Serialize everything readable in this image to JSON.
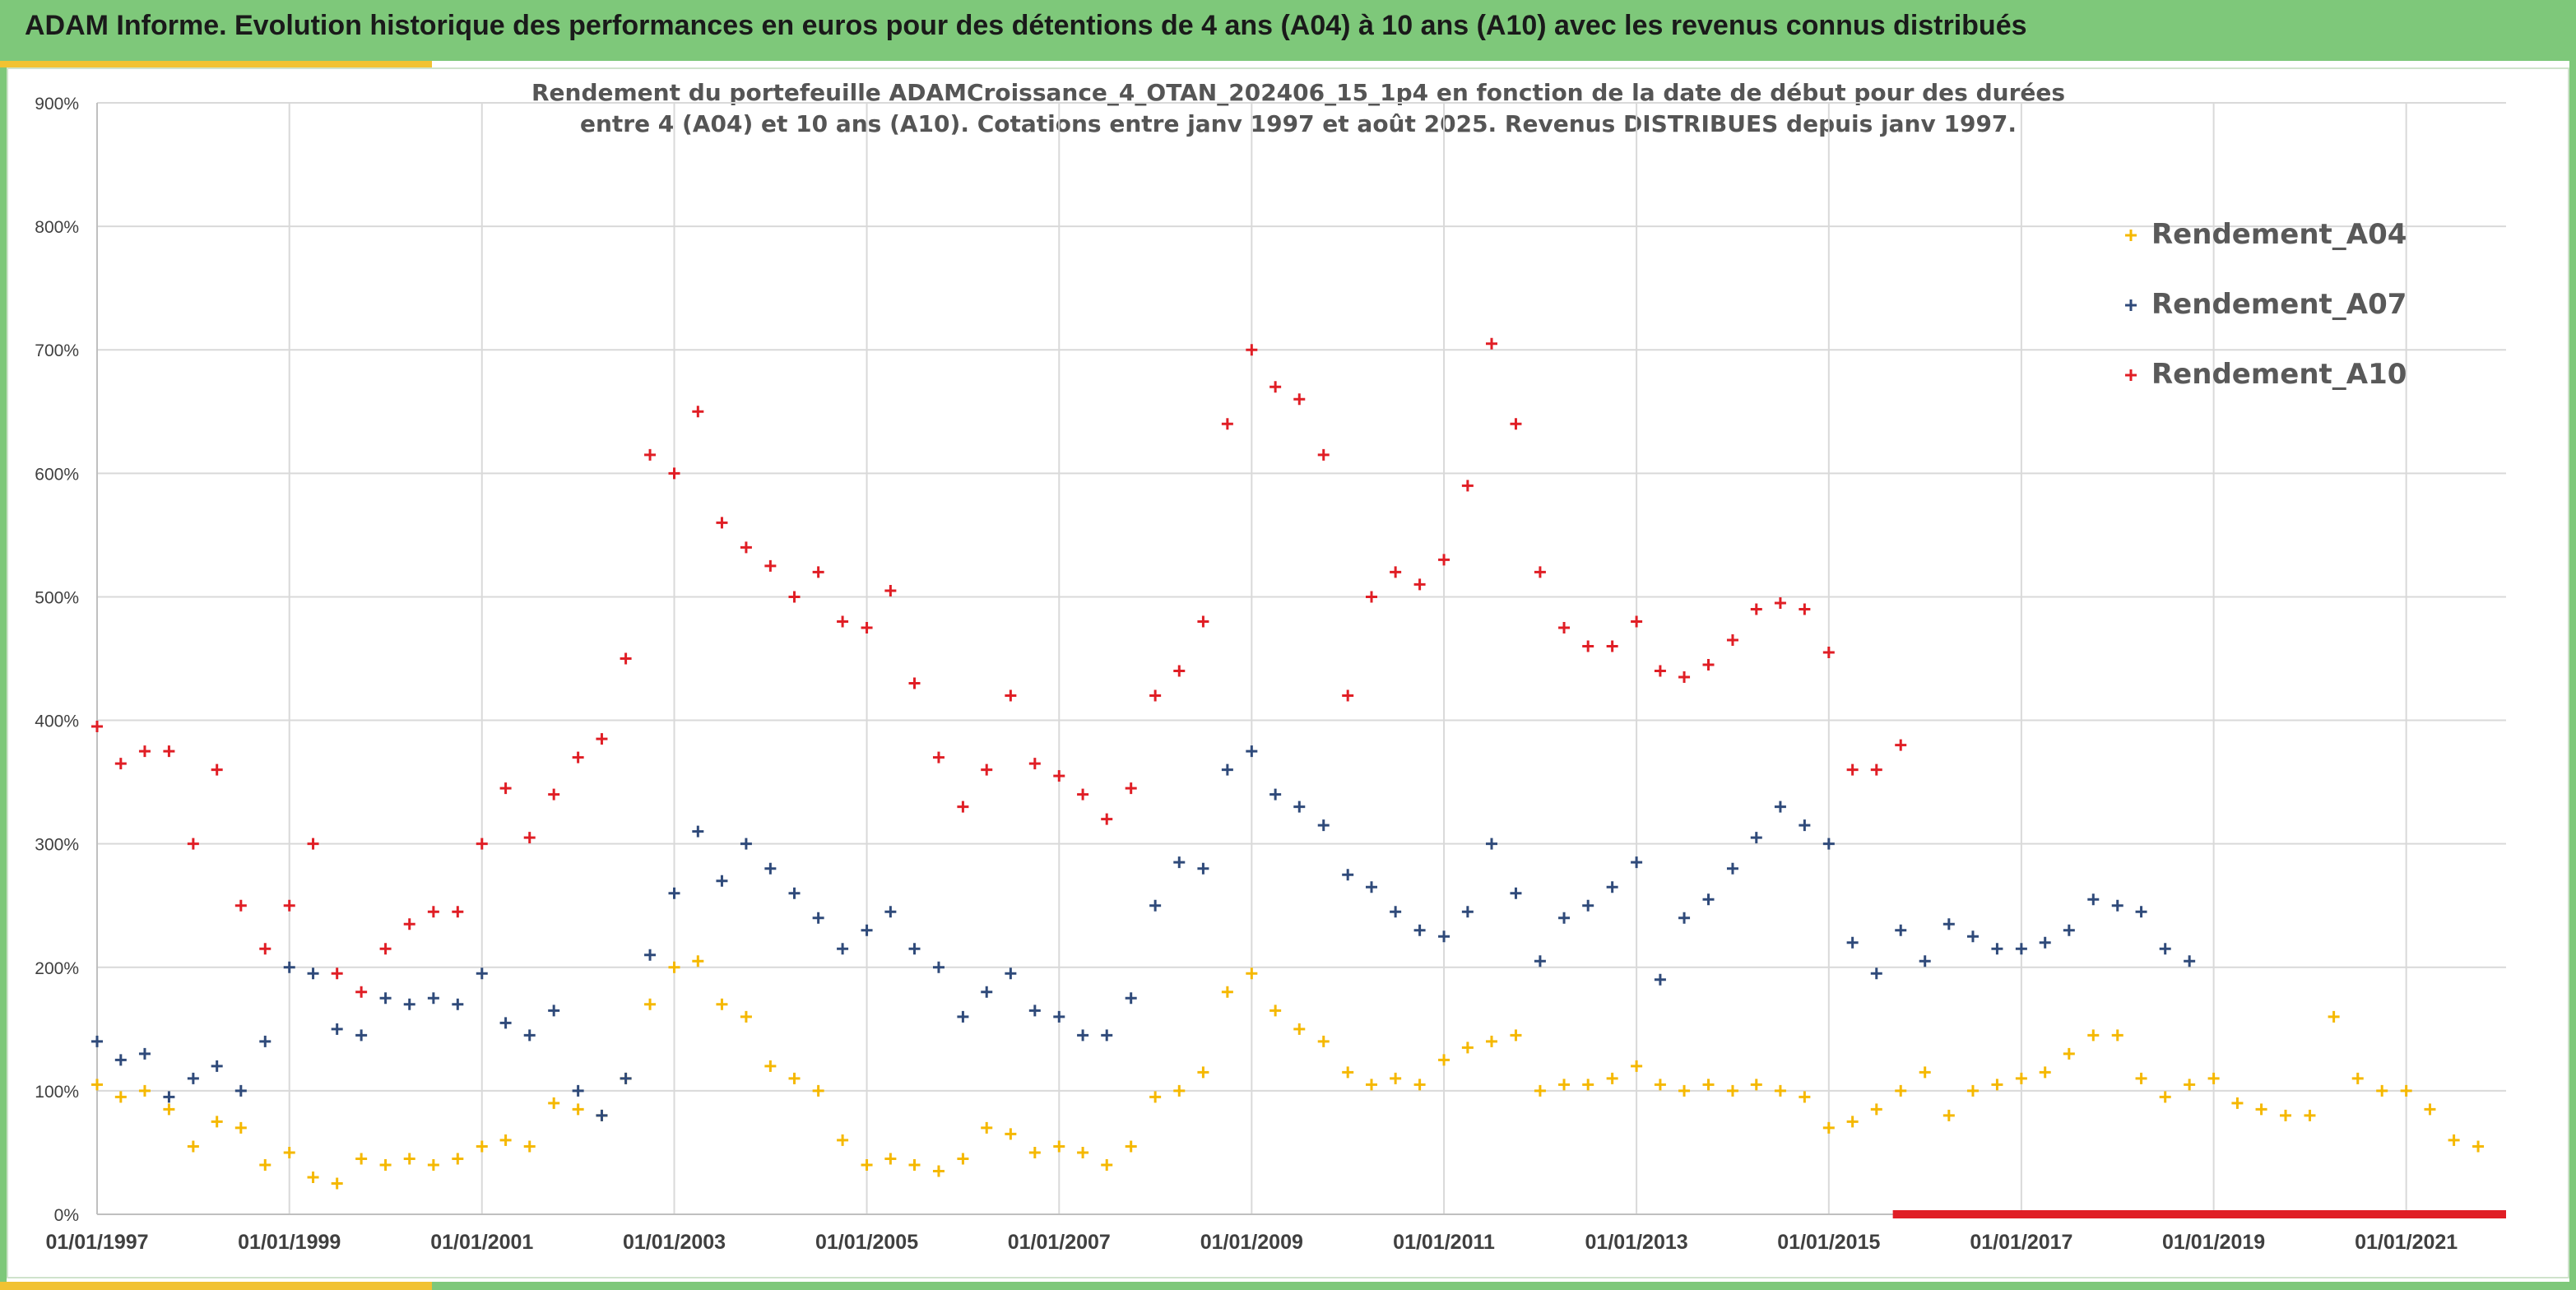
{
  "header": {
    "title": "ADAM Informe. Evolution historique des performances en euros pour des détentions de 4 ans (A04) à 10 ans (A10) avec les revenus connus distribués"
  },
  "colors": {
    "banner": "#7ec87a",
    "accent": "#f1c232",
    "A04": "#f5b800",
    "A07": "#2f4a7a",
    "A10": "#e01e25",
    "grid": "#d9d9d9"
  },
  "chart_data": {
    "type": "scatter",
    "marker": "plus",
    "title_lines": [
      "Rendement du portefeuille ADAMCroissance_4_OTAN_202406_15_1p4  en fonction de la date de début pour des durées",
      "entre 4 (A04) et 10 ans (A10). Cotations entre janv 1997 et août 2025. Revenus DISTRIBUES depuis janv 1997."
    ],
    "xlabel": "",
    "ylabel": "",
    "ylim": [
      0,
      900
    ],
    "xlim": [
      "1997-01-01",
      "2022-01-15"
    ],
    "grid": true,
    "legend_position": "top-right",
    "y_ticks": [
      "0%",
      "100%",
      "200%",
      "300%",
      "400%",
      "500%",
      "600%",
      "700%",
      "800%",
      "900%"
    ],
    "x_ticks": [
      "01/01/1997",
      "01/01/1999",
      "01/01/2001",
      "01/01/2003",
      "01/01/2005",
      "01/01/2007",
      "01/01/2009",
      "01/01/2011",
      "01/01/2013",
      "01/01/2015",
      "01/01/2017",
      "01/01/2019",
      "01/01/2021"
    ],
    "series": [
      {
        "name": "Rendement_A04",
        "color": "#f5b800",
        "points": [
          [
            "1997-01-01",
            105
          ],
          [
            "1997-04-01",
            95
          ],
          [
            "1997-07-01",
            100
          ],
          [
            "1997-10-01",
            85
          ],
          [
            "1998-01-01",
            55
          ],
          [
            "1998-04-01",
            75
          ],
          [
            "1998-07-01",
            70
          ],
          [
            "1998-10-01",
            40
          ],
          [
            "1999-01-01",
            50
          ],
          [
            "1999-04-01",
            30
          ],
          [
            "1999-07-01",
            25
          ],
          [
            "1999-10-01",
            45
          ],
          [
            "2000-01-01",
            40
          ],
          [
            "2000-04-01",
            45
          ],
          [
            "2000-07-01",
            40
          ],
          [
            "2000-10-01",
            45
          ],
          [
            "2001-01-01",
            55
          ],
          [
            "2001-04-01",
            60
          ],
          [
            "2001-07-01",
            55
          ],
          [
            "2001-10-01",
            90
          ],
          [
            "2002-01-01",
            85
          ],
          [
            "2002-04-01",
            80
          ],
          [
            "2002-07-01",
            110
          ],
          [
            "2002-10-01",
            170
          ],
          [
            "2003-01-01",
            200
          ],
          [
            "2003-04-01",
            205
          ],
          [
            "2003-07-01",
            170
          ],
          [
            "2003-10-01",
            160
          ],
          [
            "2004-01-01",
            120
          ],
          [
            "2004-04-01",
            110
          ],
          [
            "2004-07-01",
            100
          ],
          [
            "2004-10-01",
            60
          ],
          [
            "2005-01-01",
            40
          ],
          [
            "2005-04-01",
            45
          ],
          [
            "2005-07-01",
            40
          ],
          [
            "2005-10-01",
            35
          ],
          [
            "2006-01-01",
            45
          ],
          [
            "2006-04-01",
            70
          ],
          [
            "2006-07-01",
            65
          ],
          [
            "2006-10-01",
            50
          ],
          [
            "2007-01-01",
            55
          ],
          [
            "2007-04-01",
            50
          ],
          [
            "2007-07-01",
            40
          ],
          [
            "2007-10-01",
            55
          ],
          [
            "2008-01-01",
            95
          ],
          [
            "2008-04-01",
            100
          ],
          [
            "2008-07-01",
            115
          ],
          [
            "2008-10-01",
            180
          ],
          [
            "2009-01-01",
            195
          ],
          [
            "2009-04-01",
            165
          ],
          [
            "2009-07-01",
            150
          ],
          [
            "2009-10-01",
            140
          ],
          [
            "2010-01-01",
            115
          ],
          [
            "2010-04-01",
            105
          ],
          [
            "2010-07-01",
            110
          ],
          [
            "2010-10-01",
            105
          ],
          [
            "2011-01-01",
            125
          ],
          [
            "2011-04-01",
            135
          ],
          [
            "2011-07-01",
            140
          ],
          [
            "2011-10-01",
            145
          ],
          [
            "2012-01-01",
            100
          ],
          [
            "2012-04-01",
            105
          ],
          [
            "2012-07-01",
            105
          ],
          [
            "2012-10-01",
            110
          ],
          [
            "2013-01-01",
            120
          ],
          [
            "2013-04-01",
            105
          ],
          [
            "2013-07-01",
            100
          ],
          [
            "2013-10-01",
            105
          ],
          [
            "2014-01-01",
            100
          ],
          [
            "2014-04-01",
            105
          ],
          [
            "2014-07-01",
            100
          ],
          [
            "2014-10-01",
            95
          ],
          [
            "2015-01-01",
            70
          ],
          [
            "2015-04-01",
            75
          ],
          [
            "2015-07-01",
            85
          ],
          [
            "2015-10-01",
            100
          ],
          [
            "2016-01-01",
            115
          ],
          [
            "2016-04-01",
            80
          ],
          [
            "2016-07-01",
            100
          ],
          [
            "2016-10-01",
            105
          ],
          [
            "2017-01-01",
            110
          ],
          [
            "2017-04-01",
            115
          ],
          [
            "2017-07-01",
            130
          ],
          [
            "2017-10-01",
            145
          ],
          [
            "2018-01-01",
            145
          ],
          [
            "2018-04-01",
            110
          ],
          [
            "2018-07-01",
            95
          ],
          [
            "2018-10-01",
            105
          ],
          [
            "2019-01-01",
            110
          ],
          [
            "2019-04-01",
            90
          ],
          [
            "2019-07-01",
            85
          ],
          [
            "2019-10-01",
            80
          ],
          [
            "2020-01-01",
            80
          ],
          [
            "2020-04-01",
            160
          ],
          [
            "2020-07-01",
            110
          ],
          [
            "2020-10-01",
            100
          ],
          [
            "2021-01-01",
            100
          ],
          [
            "2021-04-01",
            85
          ],
          [
            "2021-07-01",
            60
          ],
          [
            "2021-10-01",
            55
          ]
        ]
      },
      {
        "name": "Rendement_A07",
        "color": "#2f4a7a",
        "points": [
          [
            "1997-01-01",
            140
          ],
          [
            "1997-04-01",
            125
          ],
          [
            "1997-07-01",
            130
          ],
          [
            "1997-10-01",
            95
          ],
          [
            "1998-01-01",
            110
          ],
          [
            "1998-04-01",
            120
          ],
          [
            "1998-07-01",
            100
          ],
          [
            "1998-10-01",
            140
          ],
          [
            "1999-01-01",
            200
          ],
          [
            "1999-04-01",
            195
          ],
          [
            "1999-07-01",
            150
          ],
          [
            "1999-10-01",
            145
          ],
          [
            "2000-01-01",
            175
          ],
          [
            "2000-04-01",
            170
          ],
          [
            "2000-07-01",
            175
          ],
          [
            "2000-10-01",
            170
          ],
          [
            "2001-01-01",
            195
          ],
          [
            "2001-04-01",
            155
          ],
          [
            "2001-07-01",
            145
          ],
          [
            "2001-10-01",
            165
          ],
          [
            "2002-01-01",
            100
          ],
          [
            "2002-04-01",
            80
          ],
          [
            "2002-07-01",
            110
          ],
          [
            "2002-10-01",
            210
          ],
          [
            "2003-01-01",
            260
          ],
          [
            "2003-04-01",
            310
          ],
          [
            "2003-07-01",
            270
          ],
          [
            "2003-10-01",
            300
          ],
          [
            "2004-01-01",
            280
          ],
          [
            "2004-04-01",
            260
          ],
          [
            "2004-07-01",
            240
          ],
          [
            "2004-10-01",
            215
          ],
          [
            "2005-01-01",
            230
          ],
          [
            "2005-04-01",
            245
          ],
          [
            "2005-07-01",
            215
          ],
          [
            "2005-10-01",
            200
          ],
          [
            "2006-01-01",
            160
          ],
          [
            "2006-04-01",
            180
          ],
          [
            "2006-07-01",
            195
          ],
          [
            "2006-10-01",
            165
          ],
          [
            "2007-01-01",
            160
          ],
          [
            "2007-04-01",
            145
          ],
          [
            "2007-07-01",
            145
          ],
          [
            "2007-10-01",
            175
          ],
          [
            "2008-01-01",
            250
          ],
          [
            "2008-04-01",
            285
          ],
          [
            "2008-07-01",
            280
          ],
          [
            "2008-10-01",
            360
          ],
          [
            "2009-01-01",
            375
          ],
          [
            "2009-04-01",
            340
          ],
          [
            "2009-07-01",
            330
          ],
          [
            "2009-10-01",
            315
          ],
          [
            "2010-01-01",
            275
          ],
          [
            "2010-04-01",
            265
          ],
          [
            "2010-07-01",
            245
          ],
          [
            "2010-10-01",
            230
          ],
          [
            "2011-01-01",
            225
          ],
          [
            "2011-04-01",
            245
          ],
          [
            "2011-07-01",
            300
          ],
          [
            "2011-10-01",
            260
          ],
          [
            "2012-01-01",
            205
          ],
          [
            "2012-04-01",
            240
          ],
          [
            "2012-07-01",
            250
          ],
          [
            "2012-10-01",
            265
          ],
          [
            "2013-01-01",
            285
          ],
          [
            "2013-04-01",
            190
          ],
          [
            "2013-07-01",
            240
          ],
          [
            "2013-10-01",
            255
          ],
          [
            "2014-01-01",
            280
          ],
          [
            "2014-04-01",
            305
          ],
          [
            "2014-07-01",
            330
          ],
          [
            "2014-10-01",
            315
          ],
          [
            "2015-01-01",
            300
          ],
          [
            "2015-04-01",
            220
          ],
          [
            "2015-07-01",
            195
          ],
          [
            "2015-10-01",
            230
          ],
          [
            "2016-01-01",
            205
          ],
          [
            "2016-04-01",
            235
          ],
          [
            "2016-07-01",
            225
          ],
          [
            "2016-10-01",
            215
          ],
          [
            "2017-01-01",
            215
          ],
          [
            "2017-04-01",
            220
          ],
          [
            "2017-07-01",
            230
          ],
          [
            "2017-10-01",
            255
          ],
          [
            "2018-01-01",
            250
          ],
          [
            "2018-04-01",
            245
          ],
          [
            "2018-07-01",
            215
          ],
          [
            "2018-10-01",
            205
          ]
        ]
      },
      {
        "name": "Rendement_A10",
        "color": "#e01e25",
        "points": [
          [
            "1997-01-01",
            395
          ],
          [
            "1997-04-01",
            365
          ],
          [
            "1997-07-01",
            375
          ],
          [
            "1997-10-01",
            375
          ],
          [
            "1998-01-01",
            300
          ],
          [
            "1998-04-01",
            360
          ],
          [
            "1998-07-01",
            250
          ],
          [
            "1998-10-01",
            215
          ],
          [
            "1999-01-01",
            250
          ],
          [
            "1999-04-01",
            300
          ],
          [
            "1999-07-01",
            195
          ],
          [
            "1999-10-01",
            180
          ],
          [
            "2000-01-01",
            215
          ],
          [
            "2000-04-01",
            235
          ],
          [
            "2000-07-01",
            245
          ],
          [
            "2000-10-01",
            245
          ],
          [
            "2001-01-01",
            300
          ],
          [
            "2001-04-01",
            345
          ],
          [
            "2001-07-01",
            305
          ],
          [
            "2001-10-01",
            340
          ],
          [
            "2002-01-01",
            370
          ],
          [
            "2002-04-01",
            385
          ],
          [
            "2002-07-01",
            450
          ],
          [
            "2002-10-01",
            615
          ],
          [
            "2003-01-01",
            600
          ],
          [
            "2003-04-01",
            650
          ],
          [
            "2003-07-01",
            560
          ],
          [
            "2003-10-01",
            540
          ],
          [
            "2004-01-01",
            525
          ],
          [
            "2004-04-01",
            500
          ],
          [
            "2004-07-01",
            520
          ],
          [
            "2004-10-01",
            480
          ],
          [
            "2005-01-01",
            475
          ],
          [
            "2005-04-01",
            505
          ],
          [
            "2005-07-01",
            430
          ],
          [
            "2005-10-01",
            370
          ],
          [
            "2006-01-01",
            330
          ],
          [
            "2006-04-01",
            360
          ],
          [
            "2006-07-01",
            420
          ],
          [
            "2006-10-01",
            365
          ],
          [
            "2007-01-01",
            355
          ],
          [
            "2007-04-01",
            340
          ],
          [
            "2007-07-01",
            320
          ],
          [
            "2007-10-01",
            345
          ],
          [
            "2008-01-01",
            420
          ],
          [
            "2008-04-01",
            440
          ],
          [
            "2008-07-01",
            480
          ],
          [
            "2008-10-01",
            640
          ],
          [
            "2009-01-01",
            700
          ],
          [
            "2009-04-01",
            670
          ],
          [
            "2009-07-01",
            660
          ],
          [
            "2009-10-01",
            615
          ],
          [
            "2010-01-01",
            420
          ],
          [
            "2010-04-01",
            500
          ],
          [
            "2010-07-01",
            520
          ],
          [
            "2010-10-01",
            510
          ],
          [
            "2011-01-01",
            530
          ],
          [
            "2011-04-01",
            590
          ],
          [
            "2011-07-01",
            705
          ],
          [
            "2011-10-01",
            640
          ],
          [
            "2012-01-01",
            520
          ],
          [
            "2012-04-01",
            475
          ],
          [
            "2012-07-01",
            460
          ],
          [
            "2012-10-01",
            460
          ],
          [
            "2013-01-01",
            480
          ],
          [
            "2013-04-01",
            440
          ],
          [
            "2013-07-01",
            435
          ],
          [
            "2013-10-01",
            445
          ],
          [
            "2014-01-01",
            465
          ],
          [
            "2014-04-01",
            490
          ],
          [
            "2014-07-01",
            495
          ],
          [
            "2014-10-01",
            490
          ],
          [
            "2015-01-01",
            455
          ],
          [
            "2015-04-01",
            360
          ],
          [
            "2015-07-01",
            360
          ],
          [
            "2015-10-01",
            380
          ]
        ]
      }
    ],
    "baseline_segment": {
      "color": "#e01e25",
      "from": "2015-09-01",
      "to": "2022-01-15",
      "y": 0
    }
  }
}
